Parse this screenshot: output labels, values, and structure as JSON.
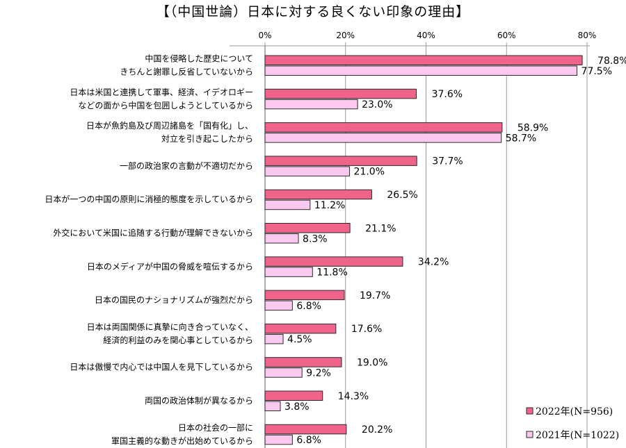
{
  "chart_data": {
    "type": "bar",
    "orientation": "horizontal",
    "title": "【（中国世論）日本に対する良くない印象の理由】",
    "xlim": [
      0,
      80
    ],
    "ticks": [
      "0%",
      "20%",
      "40%",
      "60%",
      "80%"
    ],
    "tick_values": [
      0,
      20,
      40,
      60,
      80
    ],
    "categories": [
      [
        "中国を侵略した歴史について",
        "きちんと謝罪し反省していないから"
      ],
      [
        "日本は米国と連携して軍事、経済、イデオロギー",
        "などの面から中国を包囲しようとしているから"
      ],
      [
        "日本が魚釣島及び周辺諸島を「国有化」し、",
        "対立を引き起こしたから"
      ],
      [
        "一部の政治家の言動が不適切だから"
      ],
      [
        "日本が一つの中国の原則に消極的態度を示しているから"
      ],
      [
        "外交において米国に追随する行動が理解できないから"
      ],
      [
        "日本のメディアが中国の脅威を喧伝するから"
      ],
      [
        "日本の国民のナショナリズムが強烈だから"
      ],
      [
        "日本は両国関係に真摯に向き合っていなく、",
        "経済的利益のみを関心事としているから"
      ],
      [
        "日本は傲慢で内心では中国人を見下しているから"
      ],
      [
        "両国の政治体制が異なるから"
      ],
      [
        "日本の社会の一部に",
        "軍国主義的な動きが出始めているから"
      ]
    ],
    "series": [
      {
        "name": "2022年(N=956)",
        "color": "#f0648c",
        "values": [
          78.8,
          37.6,
          58.9,
          37.7,
          26.5,
          21.1,
          34.2,
          19.7,
          17.6,
          19.0,
          14.3,
          20.2
        ],
        "labels": [
          "78.8%",
          "37.6%",
          "58.9%",
          "37.7%",
          "26.5%",
          "21.1%",
          "34.2%",
          "19.7%",
          "17.6%",
          "19.0%",
          "14.3%",
          "20.2%"
        ]
      },
      {
        "name": "2021年(N=1022)",
        "color": "#fbc8f0",
        "values": [
          77.5,
          23.0,
          58.7,
          21.0,
          11.2,
          8.3,
          11.8,
          6.8,
          4.5,
          9.2,
          3.8,
          6.8
        ],
        "labels": [
          "77.5%",
          "23.0%",
          "58.7%",
          "21.0%",
          "11.2%",
          "8.3%",
          "11.8%",
          "6.8%",
          "4.5%",
          "9.2%",
          "3.8%",
          "6.8%"
        ]
      }
    ],
    "grid": true,
    "legend_position": "bottom-right"
  }
}
